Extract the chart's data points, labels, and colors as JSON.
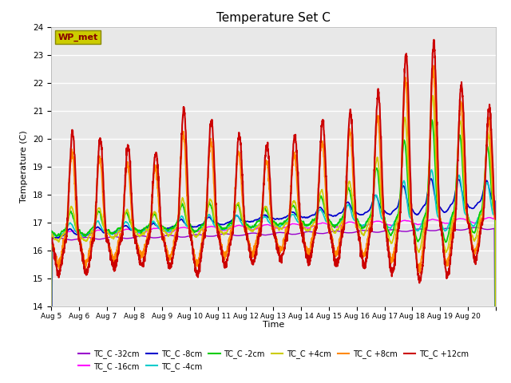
{
  "title": "Temperature Set C",
  "ylabel": "Temperature (C)",
  "xlabel": "Time",
  "ylim": [
    14.0,
    24.0
  ],
  "yticks": [
    14.0,
    15.0,
    16.0,
    17.0,
    18.0,
    19.0,
    20.0,
    21.0,
    22.0,
    23.0,
    24.0
  ],
  "date_labels": [
    "Aug 5",
    "Aug 6",
    "Aug 7",
    "Aug 8",
    "Aug 9",
    "Aug 10",
    "Aug 11",
    "Aug 12",
    "Aug 13",
    "Aug 14",
    "Aug 15",
    "Aug 16",
    "Aug 17",
    "Aug 18",
    "Aug 19",
    "Aug 20",
    ""
  ],
  "bg_color": "#dcdcdc",
  "plot_bg": "#e8e8e8",
  "series": [
    {
      "label": "TC_C -32cm",
      "color": "#9900cc",
      "lw": 1.0
    },
    {
      "label": "TC_C -16cm",
      "color": "#ff00ff",
      "lw": 1.0
    },
    {
      "label": "TC_C -8cm",
      "color": "#0000cc",
      "lw": 1.2
    },
    {
      "label": "TC_C -4cm",
      "color": "#00cccc",
      "lw": 1.2
    },
    {
      "label": "TC_C -2cm",
      "color": "#00cc00",
      "lw": 1.2
    },
    {
      "label": "TC_C +4cm",
      "color": "#cccc00",
      "lw": 1.2
    },
    {
      "label": "TC_C +8cm",
      "color": "#ff8800",
      "lw": 1.5
    },
    {
      "label": "TC_C +12cm",
      "color": "#cc0000",
      "lw": 1.5
    }
  ],
  "wp_met_box_color": "#cccc00",
  "wp_met_text_color": "#880000",
  "legend_ncol": 6
}
